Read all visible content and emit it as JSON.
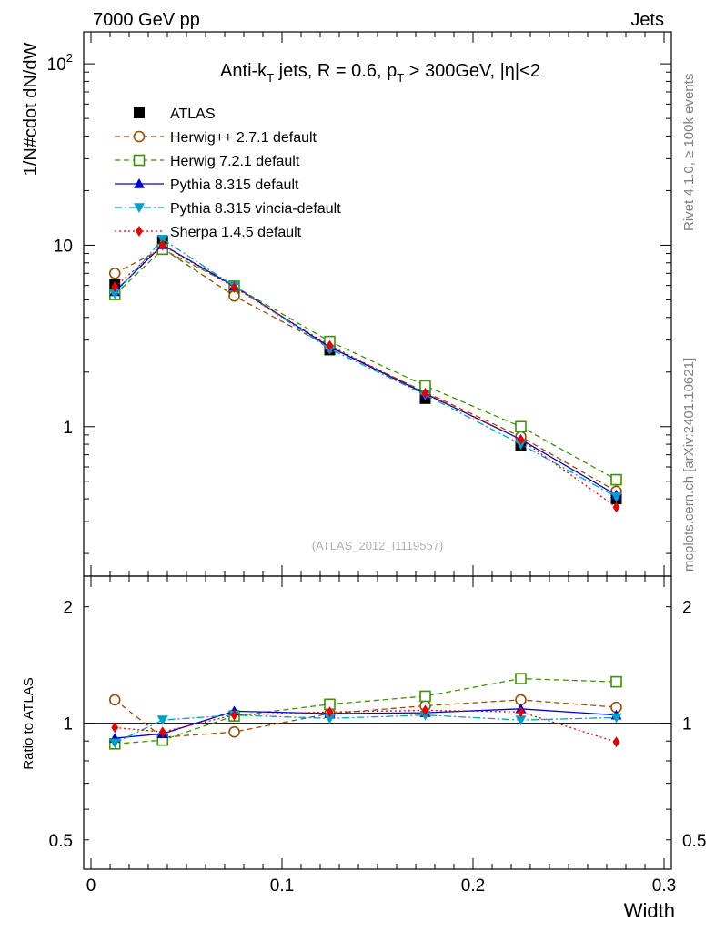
{
  "header": {
    "left": "7000 GeV pp",
    "right": "Jets"
  },
  "side_text": {
    "rivet": "Rivet 4.1.0, ≥ 100k events",
    "mcplots": "mcplots.cern.ch [arXiv:2401.10621]"
  },
  "chart_data": [
    {
      "type": "line",
      "panel": "main",
      "title": "Anti-k_T jets, R = 0.6, p_T > 300GeV, |η|<2",
      "title_parts": {
        "a": "Anti-k",
        "a_sub": "T",
        "b": " jets, R = 0.6, p",
        "b_sub": "T",
        "c": " > 300GeV, |η|<2"
      },
      "ylabel": "1/N#cdot dN/dW",
      "xlabel": "",
      "yscale": "log",
      "xlim": [
        0,
        0.3
      ],
      "ylim": [
        0.15,
        150
      ],
      "y_ticks": [
        {
          "value": 100,
          "label": "10^2"
        },
        {
          "value": 10,
          "label": "10"
        },
        {
          "value": 1,
          "label": "1"
        }
      ],
      "watermark": "(ATLAS_2012_I1119557)",
      "x": [
        0.0125,
        0.0375,
        0.075,
        0.125,
        0.175,
        0.225,
        0.275
      ],
      "series": [
        {
          "name": "ATLAS",
          "color": "#000000",
          "marker": "square-filled",
          "dash": "",
          "values": [
            6.05,
            10.5,
            5.7,
            2.65,
            1.43,
            0.79,
            0.4
          ]
        },
        {
          "name": "Herwig++ 2.7.1 default",
          "color": "#9a4b00",
          "marker": "circle-open",
          "dash": "6,4",
          "values": [
            7.0,
            9.6,
            5.25,
            2.75,
            1.55,
            0.88,
            0.44
          ]
        },
        {
          "name": "Herwig 7.2.1 default",
          "color": "#3b9400",
          "marker": "square-open",
          "dash": "6,4",
          "values": [
            5.35,
            9.5,
            5.95,
            2.95,
            1.68,
            1.0,
            0.51
          ]
        },
        {
          "name": "Pythia 8.315 default",
          "color": "#0000d0",
          "marker": "triangle-up",
          "dash": "",
          "values": [
            5.55,
            10.05,
            5.95,
            2.75,
            1.52,
            0.85,
            0.42
          ]
        },
        {
          "name": "Pythia 8.315 vincia-default",
          "color": "#00a0c8",
          "marker": "triangle-down",
          "dash": "8,3,2,3",
          "values": [
            5.4,
            10.8,
            5.95,
            2.68,
            1.5,
            0.8,
            0.41
          ]
        },
        {
          "name": "Sherpa 1.4.5 default",
          "color": "#e80000",
          "marker": "diamond",
          "dash": "2,3",
          "values": [
            5.9,
            10.0,
            5.85,
            2.8,
            1.53,
            0.85,
            0.36
          ]
        }
      ]
    },
    {
      "type": "line",
      "panel": "ratio",
      "ylabel": "Ratio to ATLAS",
      "xlabel": "Width",
      "yscale": "log",
      "xlim": [
        0,
        0.3
      ],
      "ylim": [
        0.42,
        2.4
      ],
      "y_ticks": [
        {
          "value": 2,
          "label": "2"
        },
        {
          "value": 1,
          "label": "1"
        },
        {
          "value": 0.5,
          "label": "0.5"
        }
      ],
      "x_ticks": [
        {
          "value": 0,
          "label": "0"
        },
        {
          "value": 0.1,
          "label": "0.1"
        },
        {
          "value": 0.2,
          "label": "0.2"
        },
        {
          "value": 0.3,
          "label": "0.3"
        }
      ],
      "x": [
        0.0125,
        0.0375,
        0.075,
        0.125,
        0.175,
        0.225,
        0.275
      ],
      "series": [
        {
          "name": "Herwig++ 2.7.1 default",
          "color": "#9a4b00",
          "marker": "circle-open",
          "dash": "6,4",
          "values": [
            1.15,
            0.92,
            0.95,
            1.06,
            1.11,
            1.15,
            1.1
          ]
        },
        {
          "name": "Herwig 7.2.1 default",
          "color": "#3b9400",
          "marker": "square-open",
          "dash": "6,4",
          "values": [
            0.885,
            0.905,
            1.045,
            1.12,
            1.175,
            1.305,
            1.28
          ]
        },
        {
          "name": "Pythia 8.315 default",
          "color": "#0000d0",
          "marker": "triangle-up",
          "dash": "",
          "values": [
            0.915,
            0.94,
            1.075,
            1.06,
            1.065,
            1.09,
            1.05
          ]
        },
        {
          "name": "Pythia 8.315 vincia-default",
          "color": "#00a0c8",
          "marker": "triangle-down",
          "dash": "8,3,2,3",
          "values": [
            0.89,
            1.02,
            1.05,
            1.03,
            1.05,
            1.02,
            1.035
          ]
        },
        {
          "name": "Sherpa 1.4.5 default",
          "color": "#e80000",
          "marker": "diamond",
          "dash": "2,3",
          "values": [
            0.975,
            0.95,
            1.05,
            1.07,
            1.08,
            1.07,
            0.895
          ]
        }
      ]
    }
  ]
}
